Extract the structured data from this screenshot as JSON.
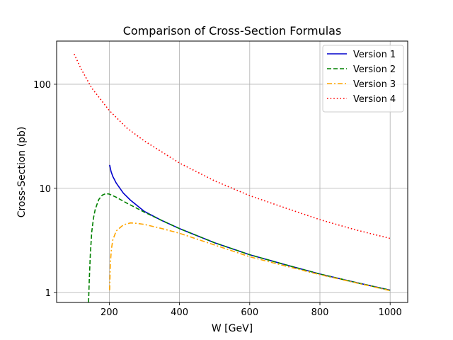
{
  "chart_data": {
    "type": "line",
    "title": "Comparison of Cross-Section Formulas",
    "xlabel": "W [GeV]",
    "ylabel": "Cross-Section (pb)",
    "xlim": [
      50,
      1050
    ],
    "ylim": [
      0.8,
      260
    ],
    "yscale": "log",
    "grid": true,
    "legend_position": "top-right",
    "x_ticks": [
      200,
      400,
      600,
      800,
      1000
    ],
    "y_ticks": [
      1,
      10,
      100
    ],
    "y_tick_labels": [
      "1",
      "10",
      "100"
    ],
    "series": [
      {
        "name": "Version 1",
        "color": "#0000cc",
        "dash": "solid",
        "x": [
          201,
          205,
          210,
          220,
          240,
          260,
          300,
          350,
          400,
          500,
          600,
          700,
          800,
          900,
          1000
        ],
        "y": [
          16.8,
          14.5,
          13.0,
          11.2,
          9.0,
          7.7,
          6.0,
          4.9,
          4.1,
          3.0,
          2.3,
          1.85,
          1.5,
          1.25,
          1.05
        ]
      },
      {
        "name": "Version 2",
        "color": "#008000",
        "dash": "dashed",
        "x": [
          141,
          143,
          146,
          150,
          155,
          160,
          170,
          180,
          190,
          200,
          220,
          250,
          300,
          350,
          400,
          500,
          600,
          700,
          800,
          900,
          1000
        ],
        "y": [
          0.8,
          1.3,
          2.3,
          3.8,
          5.2,
          6.3,
          7.8,
          8.6,
          8.9,
          8.8,
          8.2,
          7.2,
          5.9,
          4.9,
          4.1,
          3.0,
          2.3,
          1.85,
          1.5,
          1.25,
          1.05
        ]
      },
      {
        "name": "Version 3",
        "color": "#ffa500",
        "dash": "dashdot",
        "x": [
          201,
          203,
          206,
          210,
          220,
          240,
          260,
          280,
          300,
          350,
          400,
          500,
          600,
          700,
          800,
          900,
          1000
        ],
        "y": [
          1.05,
          1.9,
          2.6,
          3.2,
          3.9,
          4.45,
          4.65,
          4.6,
          4.5,
          4.1,
          3.7,
          2.85,
          2.2,
          1.8,
          1.48,
          1.24,
          1.04
        ]
      },
      {
        "name": "Version 4",
        "color": "#ff0000",
        "dash": "dotted",
        "x": [
          100,
          120,
          150,
          200,
          250,
          300,
          400,
          500,
          600,
          700,
          800,
          900,
          1000
        ],
        "y": [
          195,
          140,
          92,
          56,
          38,
          28.5,
          17.5,
          11.8,
          8.5,
          6.5,
          5.0,
          4.0,
          3.3
        ]
      }
    ]
  }
}
